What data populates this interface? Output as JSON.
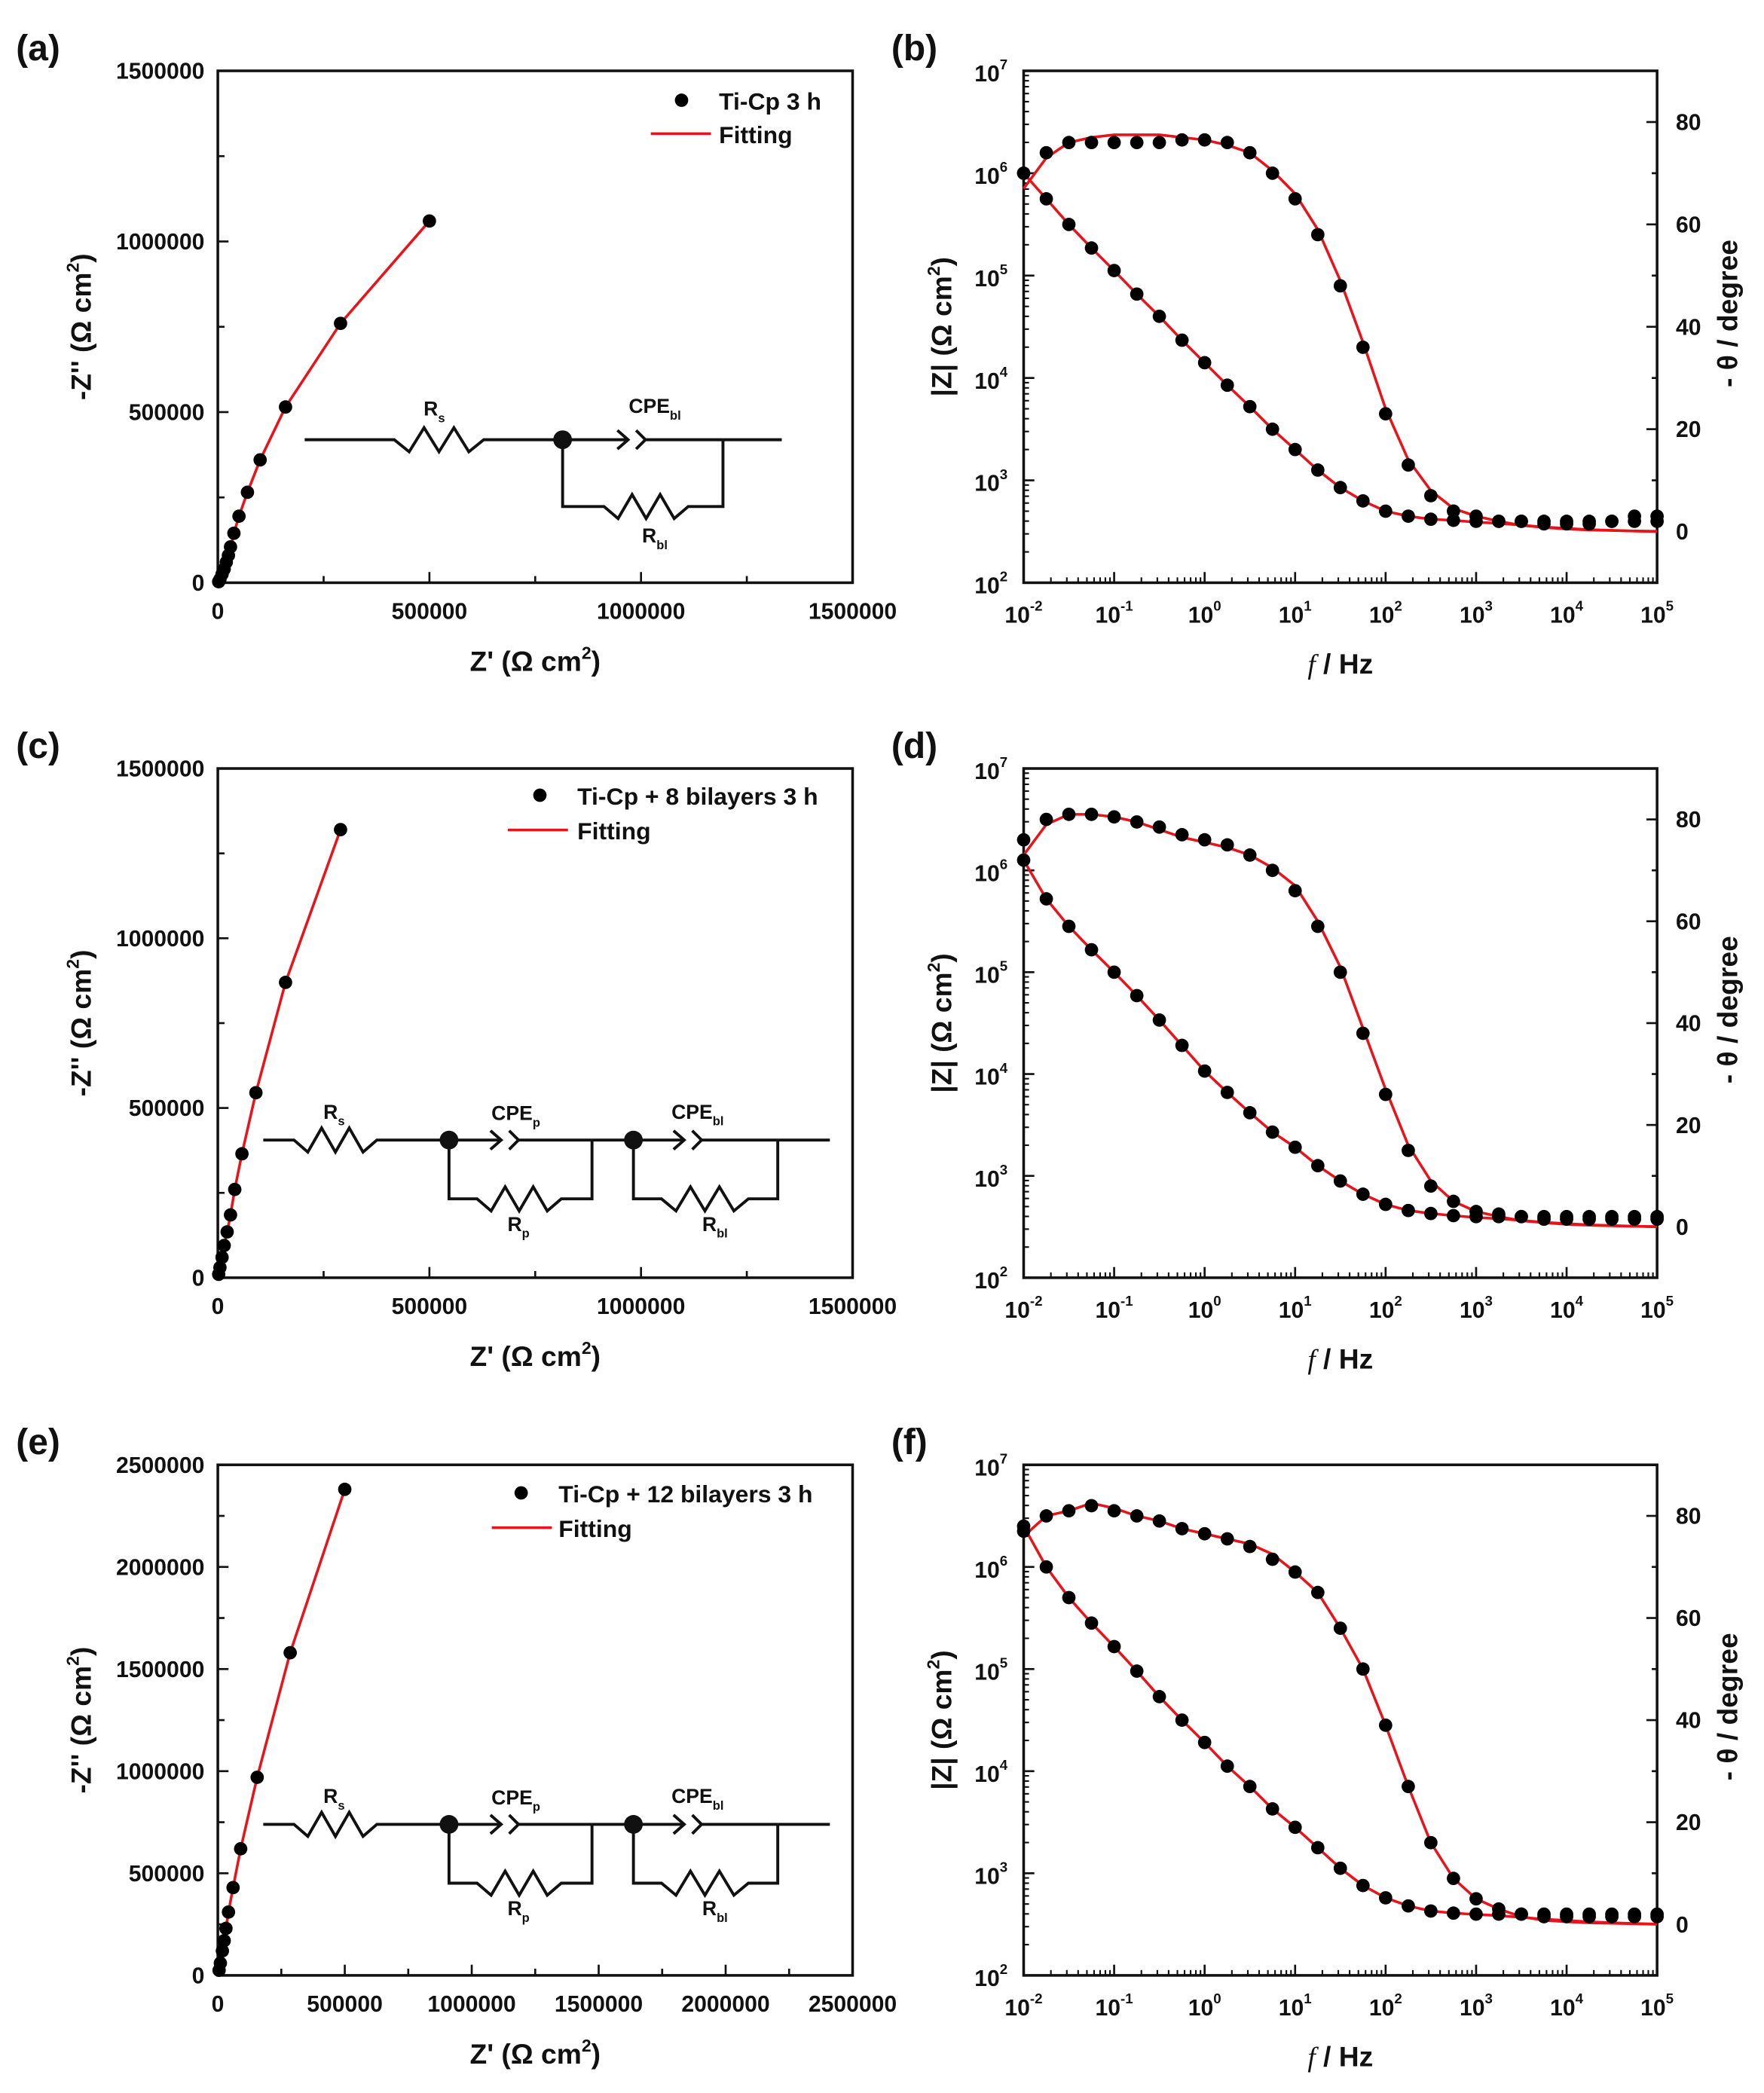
{
  "colors": {
    "data": "#000000",
    "fit": "#e8141b",
    "axis": "#111111"
  },
  "chart_data": [
    {
      "panel": "(a)",
      "type": "scatter",
      "xlabel": {
        "text": "Z' (Ω cm",
        "sup": "2",
        "tail": ")"
      },
      "ylabel": {
        "text": "-Z'' (Ω cm",
        "sup": "2",
        "tail": ")"
      },
      "xlim": [
        0,
        1500000
      ],
      "ylim": [
        0,
        1500000
      ],
      "xticks": [
        0,
        500000,
        1000000,
        1500000
      ],
      "yticks": [
        0,
        500000,
        1000000,
        1500000
      ],
      "legend_position": "top-right",
      "series": [
        {
          "name": "Ti-Cp 3 h",
          "style": "markers",
          "points": [
            [
              2000,
              3000
            ],
            [
              5000,
              10000
            ],
            [
              10000,
              25000
            ],
            [
              15000,
              40000
            ],
            [
              20000,
              60000
            ],
            [
              25000,
              80000
            ],
            [
              30000,
              105000
            ],
            [
              38000,
              145000
            ],
            [
              50000,
              195000
            ],
            [
              70000,
              265000
            ],
            [
              100000,
              360000
            ],
            [
              160000,
              515000
            ],
            [
              290000,
              760000
            ],
            [
              500000,
              1060000
            ]
          ]
        },
        {
          "name": "Fitting",
          "style": "line",
          "points": [
            [
              0,
              0
            ],
            [
              5000,
              10000
            ],
            [
              10000,
              25000
            ],
            [
              15000,
              40000
            ],
            [
              20000,
              60000
            ],
            [
              25000,
              80000
            ],
            [
              30000,
              105000
            ],
            [
              38000,
              145000
            ],
            [
              50000,
              195000
            ],
            [
              70000,
              265000
            ],
            [
              100000,
              360000
            ],
            [
              160000,
              515000
            ],
            [
              290000,
              760000
            ],
            [
              500000,
              1060000
            ]
          ]
        }
      ],
      "circuit": {
        "rs": {
          "main": "R",
          "sub": "s"
        },
        "cpe1": {
          "main": "CPE",
          "sub": "bl"
        },
        "r1": {
          "main": "R",
          "sub": "bl"
        }
      }
    },
    {
      "panel": "(b)",
      "type": "line",
      "xscale": "log",
      "xlabel": {
        "italic": "f",
        "text": " / Hz"
      },
      "ylabel_left": {
        "text": "|Z| (Ω cm",
        "sup": "2",
        "tail": ")"
      },
      "ylabel_right": "- θ / degree",
      "tick_base": "10",
      "x_tick_exponents": [
        -2,
        -1,
        0,
        1,
        2,
        3,
        4,
        5
      ],
      "y_tick_exponents": [
        2,
        3,
        4,
        5,
        6,
        7
      ],
      "ylim_right": [
        -10,
        90
      ],
      "yticks_right": [
        0,
        20,
        40,
        60,
        80
      ],
      "frequency_hz": [
        0.01,
        0.0178,
        0.0316,
        0.0562,
        0.1,
        0.178,
        0.316,
        0.562,
        1,
        1.78,
        3.16,
        5.62,
        10,
        17.8,
        31.6,
        56.2,
        100,
        178,
        316,
        562,
        1000,
        1778,
        3162,
        5623,
        10000,
        17783,
        31623,
        56234,
        100000
      ],
      "series": [
        {
          "name": "|Z| data",
          "axis": "left",
          "style": "markers",
          "values": [
            1000000,
            562000,
            316000,
            186000,
            112000,
            66000,
            40000,
            23400,
            14100,
            8500,
            5250,
            3160,
            2000,
            1260,
            850,
            630,
            500,
            447,
            417,
            407,
            398,
            398,
            398,
            398,
            398,
            398,
            398,
            398,
            398
          ]
        },
        {
          "name": "|Z| fit",
          "axis": "left",
          "style": "line",
          "values": [
            1000000,
            562000,
            316000,
            186000,
            112000,
            66000,
            40000,
            23400,
            14100,
            8500,
            5250,
            3160,
            2000,
            1260,
            850,
            630,
            500,
            447,
            417,
            407,
            390,
            380,
            365,
            350,
            340,
            330,
            325,
            320,
            318
          ]
        },
        {
          "name": "phase data",
          "axis": "right",
          "style": "markers",
          "values": [
            70,
            74,
            76,
            76,
            76,
            76,
            76,
            76.5,
            76.5,
            76,
            74,
            70,
            65,
            58,
            48,
            36,
            23,
            13,
            7,
            4,
            3,
            2,
            2,
            1.5,
            1.5,
            1.5,
            2,
            3,
            3
          ]
        },
        {
          "name": "phase fit",
          "axis": "right",
          "style": "line",
          "values": [
            67,
            73,
            76,
            77,
            77.5,
            77.5,
            77.5,
            77,
            76.5,
            75.5,
            74,
            70.5,
            66,
            59,
            49,
            37,
            24,
            14,
            8,
            4.5,
            3,
            2,
            1.2,
            0.8,
            0.5,
            0.3,
            0.2,
            0.1,
            0
          ]
        }
      ]
    },
    {
      "panel": "(c)",
      "type": "scatter",
      "xlabel": {
        "text": "Z' (Ω cm",
        "sup": "2",
        "tail": ")"
      },
      "ylabel": {
        "text": "-Z'' (Ω cm",
        "sup": "2",
        "tail": ")"
      },
      "xlim": [
        0,
        1500000
      ],
      "ylim": [
        0,
        1500000
      ],
      "xticks": [
        0,
        500000,
        1000000,
        1500000
      ],
      "yticks": [
        0,
        500000,
        1000000,
        1500000
      ],
      "legend_position": "top-right",
      "series": [
        {
          "name": "Ti-Cp + 8 bilayers 3 h",
          "style": "markers",
          "points": [
            [
              2000,
              10000
            ],
            [
              5000,
              30000
            ],
            [
              10000,
              60000
            ],
            [
              15000,
              95000
            ],
            [
              22000,
              135000
            ],
            [
              30000,
              185000
            ],
            [
              40000,
              260000
            ],
            [
              57000,
              365000
            ],
            [
              90000,
              545000
            ],
            [
              160000,
              870000
            ],
            [
              290000,
              1320000
            ]
          ]
        },
        {
          "name": "Fitting",
          "style": "line",
          "points": [
            [
              0,
              0
            ],
            [
              5000,
              30000
            ],
            [
              10000,
              60000
            ],
            [
              15000,
              95000
            ],
            [
              22000,
              135000
            ],
            [
              30000,
              185000
            ],
            [
              40000,
              260000
            ],
            [
              57000,
              365000
            ],
            [
              90000,
              545000
            ],
            [
              160000,
              870000
            ],
            [
              290000,
              1320000
            ]
          ]
        }
      ],
      "circuit": {
        "rs": {
          "main": "R",
          "sub": "s"
        },
        "cpe1": {
          "main": "CPE",
          "sub": "p"
        },
        "r1": {
          "main": "R",
          "sub": "p"
        },
        "cpe2": {
          "main": "CPE",
          "sub": "bl"
        },
        "r2": {
          "main": "R",
          "sub": "bl"
        }
      }
    },
    {
      "panel": "(d)",
      "type": "line",
      "xscale": "log",
      "xlabel": {
        "italic": "f",
        "text": " / Hz"
      },
      "ylabel_left": {
        "text": "|Z| (Ω cm",
        "sup": "2",
        "tail": ")"
      },
      "ylabel_right": "- θ / degree",
      "tick_base": "10",
      "x_tick_exponents": [
        -2,
        -1,
        0,
        1,
        2,
        3,
        4,
        5
      ],
      "y_tick_exponents": [
        2,
        3,
        4,
        5,
        6,
        7
      ],
      "ylim_right": [
        -10,
        90
      ],
      "yticks_right": [
        0,
        20,
        40,
        60,
        80
      ],
      "frequency_hz": [
        0.01,
        0.0178,
        0.0316,
        0.0562,
        0.1,
        0.178,
        0.316,
        0.562,
        1,
        1.78,
        3.16,
        5.62,
        10,
        17.8,
        31.6,
        56.2,
        100,
        178,
        316,
        562,
        1000,
        1778,
        3162,
        5623,
        10000,
        17783,
        31623,
        56234,
        100000
      ],
      "series": [
        {
          "name": "|Z| data",
          "axis": "left",
          "style": "markers",
          "values": [
            1260000,
            525000,
            282000,
            166000,
            100000,
            58900,
            33900,
            19100,
            10700,
            6600,
            4170,
            2690,
            1910,
            1260,
            891,
            661,
            525,
            457,
            427,
            407,
            398,
            398,
            398,
            398,
            398,
            398,
            398,
            398,
            398
          ]
        },
        {
          "name": "|Z| fit",
          "axis": "left",
          "style": "line",
          "values": [
            1260000,
            525000,
            282000,
            166000,
            100000,
            58900,
            33900,
            19100,
            10700,
            6600,
            4170,
            2690,
            1910,
            1260,
            891,
            661,
            525,
            457,
            427,
            407,
            390,
            380,
            365,
            350,
            340,
            330,
            325,
            320,
            318
          ]
        },
        {
          "name": "phase data",
          "axis": "right",
          "style": "markers",
          "values": [
            76,
            80,
            81,
            81,
            80.5,
            79.5,
            78.5,
            77,
            76,
            75,
            73,
            70,
            66,
            59,
            50,
            38,
            26,
            15,
            8,
            5,
            3,
            2.5,
            2,
            1.5,
            1.5,
            1.5,
            1.5,
            1.5,
            1.5
          ]
        },
        {
          "name": "phase fit",
          "axis": "right",
          "style": "line",
          "values": [
            73,
            79,
            81,
            81,
            80.5,
            79.5,
            78,
            76.5,
            75.5,
            74.5,
            73,
            70.5,
            67,
            60,
            51,
            39,
            27,
            16,
            9,
            5,
            3,
            2,
            1.2,
            0.8,
            0.5,
            0.3,
            0.2,
            0.1,
            0
          ]
        }
      ]
    },
    {
      "panel": "(e)",
      "type": "scatter",
      "xlabel": {
        "text": "Z' (Ω cm",
        "sup": "2",
        "tail": ")"
      },
      "ylabel": {
        "text": "-Z'' (Ω cm",
        "sup": "2",
        "tail": ")"
      },
      "xlim": [
        0,
        2500000
      ],
      "ylim": [
        0,
        2500000
      ],
      "xticks": [
        0,
        500000,
        1000000,
        1500000,
        2000000,
        2500000
      ],
      "yticks": [
        0,
        500000,
        1000000,
        1500000,
        2000000,
        2500000
      ],
      "legend_position": "top-right",
      "series": [
        {
          "name": "Ti-Cp + 12 bilayers 3 h",
          "style": "markers",
          "points": [
            [
              5000,
              25000
            ],
            [
              10000,
              60000
            ],
            [
              18000,
              120000
            ],
            [
              25000,
              170000
            ],
            [
              32000,
              230000
            ],
            [
              42000,
              310000
            ],
            [
              60000,
              430000
            ],
            [
              90000,
              620000
            ],
            [
              155000,
              970000
            ],
            [
              285000,
              1580000
            ],
            [
              500000,
              2380000
            ]
          ]
        },
        {
          "name": "Fitting",
          "style": "line",
          "points": [
            [
              0,
              0
            ],
            [
              10000,
              60000
            ],
            [
              18000,
              120000
            ],
            [
              25000,
              170000
            ],
            [
              32000,
              230000
            ],
            [
              42000,
              310000
            ],
            [
              60000,
              430000
            ],
            [
              90000,
              620000
            ],
            [
              155000,
              970000
            ],
            [
              285000,
              1580000
            ],
            [
              500000,
              2380000
            ]
          ]
        }
      ],
      "circuit": {
        "rs": {
          "main": "R",
          "sub": "s"
        },
        "cpe1": {
          "main": "CPE",
          "sub": "p"
        },
        "r1": {
          "main": "R",
          "sub": "p"
        },
        "cpe2": {
          "main": "CPE",
          "sub": "bl"
        },
        "r2": {
          "main": "R",
          "sub": "bl"
        }
      }
    },
    {
      "panel": "(f)",
      "type": "line",
      "xscale": "log",
      "xlabel": {
        "italic": "f",
        "text": " / Hz"
      },
      "ylabel_left": {
        "text": "|Z| (Ω cm",
        "sup": "2",
        "tail": ")"
      },
      "ylabel_right": "- θ / degree",
      "tick_base": "10",
      "x_tick_exponents": [
        -2,
        -1,
        0,
        1,
        2,
        3,
        4,
        5
      ],
      "y_tick_exponents": [
        2,
        3,
        4,
        5,
        6,
        7
      ],
      "ylim_right": [
        -10,
        90
      ],
      "yticks_right": [
        0,
        20,
        40,
        60,
        80
      ],
      "frequency_hz": [
        0.01,
        0.0178,
        0.0316,
        0.0562,
        0.1,
        0.178,
        0.316,
        0.562,
        1,
        1.78,
        3.16,
        5.62,
        10,
        17.8,
        31.6,
        56.2,
        100,
        178,
        316,
        562,
        1000,
        1778,
        3162,
        5623,
        10000,
        17783,
        31623,
        56234,
        100000
      ],
      "series": [
        {
          "name": "|Z| data",
          "axis": "left",
          "style": "markers",
          "values": [
            2510000,
            1000000,
            501000,
            282000,
            166000,
            95500,
            53700,
            31600,
            19100,
            11200,
            7080,
            4270,
            2820,
            1780,
            1120,
            759,
            575,
            479,
            427,
            407,
            398,
            398,
            398,
            398,
            398,
            398,
            398,
            398,
            398
          ]
        },
        {
          "name": "|Z| fit",
          "axis": "left",
          "style": "line",
          "values": [
            2510000,
            1000000,
            501000,
            282000,
            166000,
            95500,
            53700,
            31600,
            19100,
            11200,
            7080,
            4270,
            2820,
            1780,
            1120,
            759,
            575,
            479,
            427,
            407,
            395,
            385,
            370,
            355,
            345,
            335,
            328,
            322,
            318
          ]
        },
        {
          "name": "phase data",
          "axis": "right",
          "style": "markers",
          "values": [
            77,
            80,
            81,
            82,
            81,
            80,
            79,
            77.5,
            76.5,
            75.5,
            74,
            71.5,
            69,
            65,
            58,
            50,
            39,
            27,
            16,
            9,
            5,
            3,
            2,
            1.5,
            1.5,
            1.5,
            1.5,
            1.5,
            1.5
          ]
        },
        {
          "name": "phase fit",
          "axis": "right",
          "style": "line",
          "values": [
            76,
            80,
            81,
            82.5,
            81.5,
            80,
            79,
            77.5,
            76.5,
            75.5,
            74.5,
            72.5,
            69,
            65,
            58,
            50,
            39,
            27,
            16,
            9,
            5,
            3,
            1.5,
            0.8,
            0.5,
            0.3,
            0.2,
            0.1,
            0
          ]
        }
      ]
    }
  ]
}
